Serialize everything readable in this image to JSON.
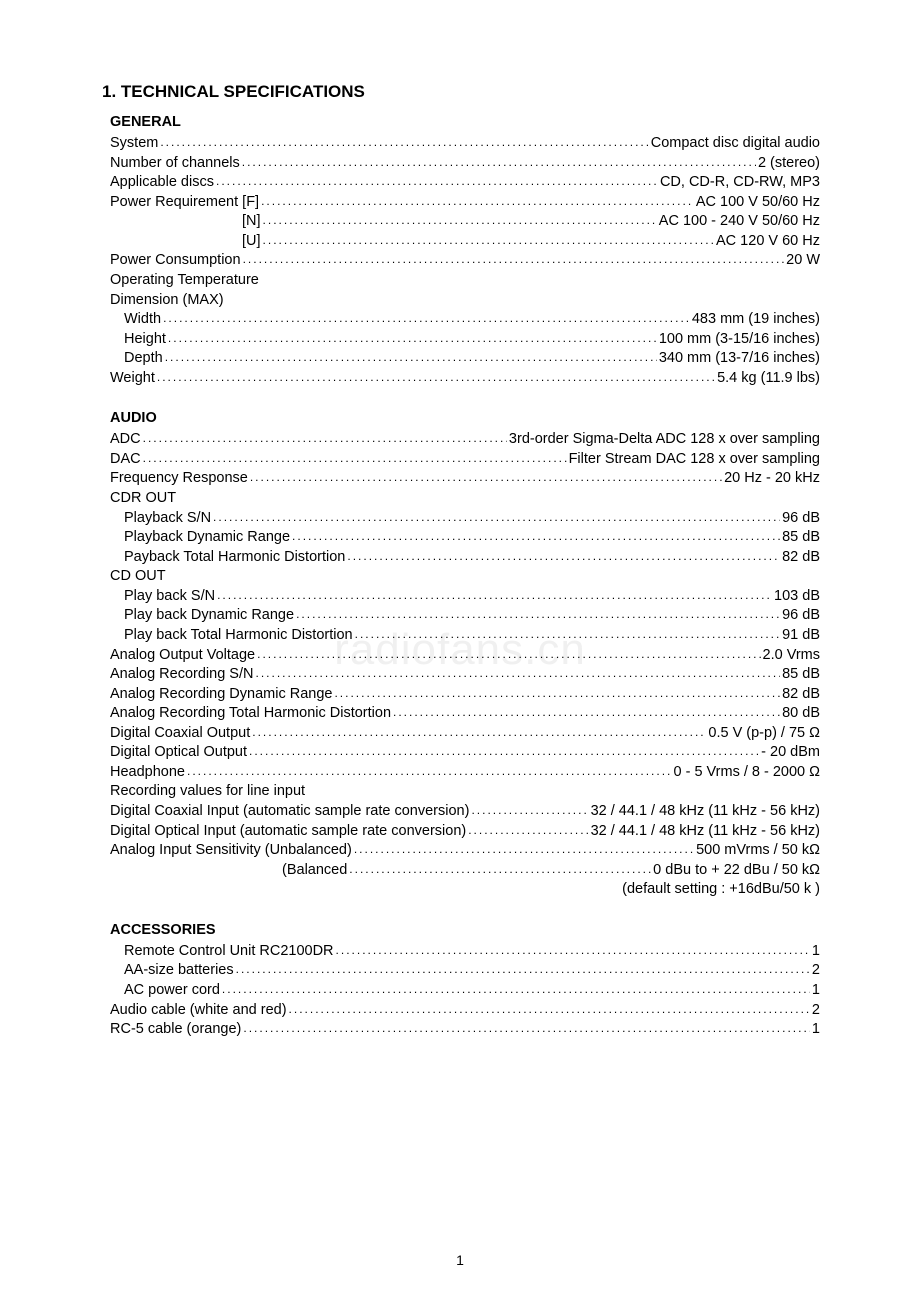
{
  "colors": {
    "text": "#000000",
    "background": "#ffffff",
    "watermark": "rgba(0,0,0,0.06)"
  },
  "typography": {
    "body_fontsize_pt": 11,
    "heading_fontsize_pt": 13,
    "font_family": "Arial"
  },
  "page_number": "1",
  "watermark_text": "radiofans.cn",
  "main_heading": "1. TECHNICAL SPECIFICATIONS",
  "sections": [
    {
      "title": "GENERAL",
      "rows": [
        {
          "label": "System",
          "value": "Compact disc digital audio",
          "indent": 0
        },
        {
          "label": "Number of channels",
          "value": "2 (stereo)",
          "indent": 0
        },
        {
          "label": "Applicable discs",
          "value": "CD, CD-R, CD-RW, MP3",
          "indent": 0
        },
        {
          "label": "Power Requirement [F]",
          "value": "AC 100 V 50/60 Hz",
          "indent": 0
        },
        {
          "label": "[N]",
          "value": "AC 100 - 240 V 50/60 Hz",
          "indent": 2
        },
        {
          "label": "[U]",
          "value": "AC 120 V 60 Hz",
          "indent": 2
        },
        {
          "label": "Power Consumption",
          "value": "20 W",
          "indent": 0
        },
        {
          "label": "Operating Temperature",
          "value": "",
          "indent": 0,
          "noval": true
        },
        {
          "label": "Dimension (MAX)",
          "value": "",
          "indent": 0,
          "noval": true
        },
        {
          "label": "Width",
          "value": "483 mm (19 inches)",
          "indent": 1
        },
        {
          "label": "Height",
          "value": "100 mm (3-15/16 inches)",
          "indent": 1
        },
        {
          "label": "Depth",
          "value": "340 mm (13-7/16 inches)",
          "indent": 1
        },
        {
          "label": "Weight",
          "value": "5.4 kg (11.9 lbs)",
          "indent": 0
        }
      ]
    },
    {
      "title": "AUDIO",
      "rows": [
        {
          "label": "ADC ",
          "value": "3rd-order Sigma-Delta ADC 128 x over sampling",
          "indent": 0
        },
        {
          "label": "DAC ",
          "value": "Filter Stream DAC 128 x over sampling",
          "indent": 0
        },
        {
          "label": "Frequency Response",
          "value": "20 Hz - 20 kHz",
          "indent": 0
        },
        {
          "label": "CDR OUT",
          "value": "",
          "indent": 0,
          "noval": true
        },
        {
          "label": "Playback S/N",
          "value": "96 dB",
          "indent": 1
        },
        {
          "label": "Playback Dynamic Range",
          "value": "85 dB",
          "indent": 1
        },
        {
          "label": "Payback Total Harmonic Distortion",
          "value": "82 dB",
          "indent": 1
        },
        {
          "label": "CD OUT",
          "value": "",
          "indent": 0,
          "noval": true
        },
        {
          "label": "Play back S/N",
          "value": "103 dB",
          "indent": 1
        },
        {
          "label": "Play back Dynamic Range",
          "value": "96 dB",
          "indent": 1
        },
        {
          "label": "Play back Total Harmonic Distortion",
          "value": "91 dB",
          "indent": 1
        },
        {
          "label": "Analog Output Voltage",
          "value": "2.0 Vrms",
          "indent": 0
        },
        {
          "label": "Analog Recording S/N",
          "value": "85 dB",
          "indent": 0
        },
        {
          "label": "Analog Recording Dynamic Range",
          "value": "82 dB",
          "indent": 0
        },
        {
          "label": "Analog Recording Total Harmonic Distortion",
          "value": "80 dB",
          "indent": 0
        },
        {
          "label": "Digital Coaxial Output",
          "value": "0.5 V (p-p) / 75 Ω",
          "indent": 0
        },
        {
          "label": "Digital Optical Output",
          "value": "- 20 dBm",
          "indent": 0
        },
        {
          "label": "Headphone",
          "value": "0 - 5 Vrms / 8 - 2000 Ω",
          "indent": 0
        },
        {
          "label": "Recording values for line input",
          "value": "",
          "indent": 0,
          "noval": true
        },
        {
          "label": "Digital Coaxial Input (automatic sample rate conversion)",
          "value": "32 / 44.1 / 48 kHz (11 kHz - 56 kHz)",
          "indent": 0
        },
        {
          "label": "Digital Optical Input (automatic sample rate conversion)",
          "value": "32 / 44.1 / 48 kHz (11 kHz - 56 kHz)",
          "indent": 0
        },
        {
          "label": "Analog Input Sensitivity (Unbalanced)",
          "value": "500 mVrms / 50 kΩ",
          "indent": 0
        },
        {
          "label": "(Balanced",
          "value": "0 dBu to + 22 dBu / 50 kΩ",
          "indent": 3
        }
      ],
      "trailing_note": "(default setting : +16dBu/50 k )"
    },
    {
      "title": "ACCESSORIES",
      "rows": [
        {
          "label": "Remote Control Unit RC2100DR",
          "value": "1",
          "indent": 1
        },
        {
          "label": "AA-size batteries",
          "value": "2",
          "indent": 1
        },
        {
          "label": "AC power cord",
          "value": "1",
          "indent": 1
        },
        {
          "label": "Audio cable (white and red)",
          "value": "2",
          "indent": 0
        },
        {
          "label": "RC-5 cable (orange)",
          "value": "1",
          "indent": 0
        }
      ]
    }
  ]
}
